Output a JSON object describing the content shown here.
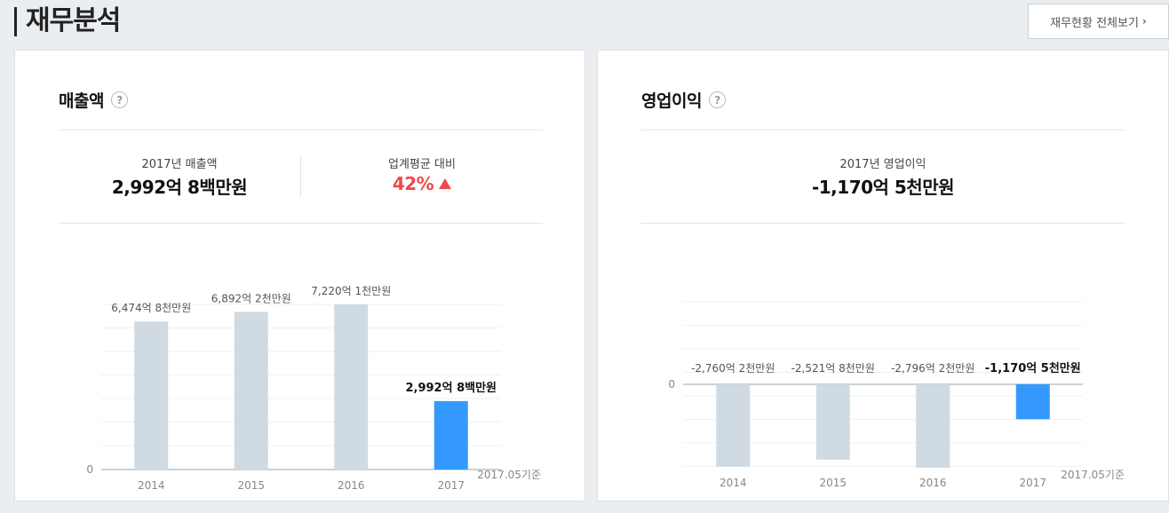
{
  "header": {
    "title": "재무분석",
    "view_all_label": "재무현황 전체보기"
  },
  "revenue": {
    "title": "매출액",
    "current_label": "2017년 매출액",
    "current_value": "2,992억 8백만원",
    "compare_label": "업계평균 대비",
    "compare_value": "42%",
    "note": "2017.05기준",
    "zero_label": "0"
  },
  "operating": {
    "title": "영업이익",
    "current_label": "2017년 영업이익",
    "current_value": "-1,170억 5천만원",
    "note": "2017.05기준",
    "zero_label": "0"
  },
  "colors": {
    "highlight_bar": "#3399ff",
    "normal_bar": "#d0dae2",
    "up_arrow": "#f04a4a"
  },
  "chart_data": [
    {
      "type": "bar",
      "title": "매출액",
      "categories": [
        "2014",
        "2015",
        "2016",
        "2017"
      ],
      "values": [
        6474.8,
        6892.2,
        7220.1,
        2992.08
      ],
      "unit": "억원",
      "labels": [
        "6,474억 8천만원",
        "6,892억 2천만원",
        "7,220억 1천만원",
        "2,992억 8백만원"
      ],
      "ylim": [
        0,
        7220.1
      ],
      "highlight_index": 3,
      "grid": true
    },
    {
      "type": "bar",
      "title": "영업이익",
      "categories": [
        "2014",
        "2015",
        "2016",
        "2017"
      ],
      "values": [
        -2760.2,
        -2521.8,
        -2796.2,
        -1170.5
      ],
      "unit": "억원",
      "labels": [
        "-2,760억 2천만원",
        "-2,521억 8천만원",
        "-2,796억 2천만원",
        "-1,170억 5천만원"
      ],
      "ylim": [
        -2796.2,
        0
      ],
      "highlight_index": 3,
      "grid": true
    }
  ]
}
